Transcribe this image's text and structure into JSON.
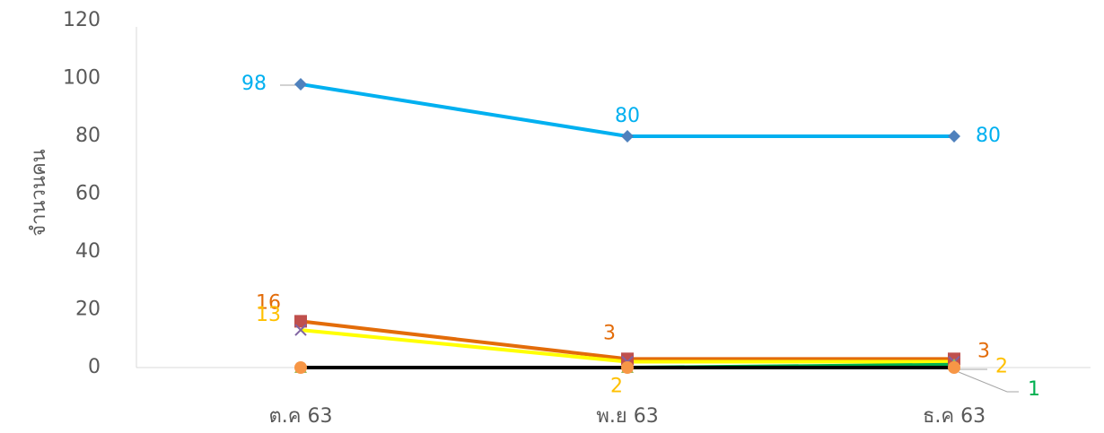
{
  "chart_data": {
    "type": "line",
    "y_axis_label": "จำนวนคน",
    "categories": [
      "ต.ค 63",
      "พ.ย 63",
      "ธ.ค 63"
    ],
    "ylim": [
      0,
      120
    ],
    "yticks": [
      0,
      20,
      40,
      60,
      80,
      100,
      120
    ],
    "series": [
      {
        "color": "#00b0f0",
        "marker": "diamond",
        "marker_color": "#4f81bd",
        "label_color": "#00b0f0",
        "values": [
          98,
          80,
          80
        ],
        "value_labels": [
          "98",
          "80",
          "80"
        ]
      },
      {
        "color": "#e36c09",
        "marker": "square",
        "marker_color": "#c0504d",
        "label_color": "#e36c09",
        "values": [
          16,
          3,
          3
        ],
        "value_labels": [
          "16",
          "3",
          "3"
        ]
      },
      {
        "color": "#ffff00",
        "marker": "x",
        "marker_color": "#8064a2",
        "label_color": "#ffc000",
        "values": [
          13,
          2,
          2
        ],
        "value_labels": [
          "13",
          "2",
          "2"
        ]
      },
      {
        "color": "#00b050",
        "marker": "triangle",
        "marker_color": "#9bbb59",
        "label_color": "#00b050",
        "values": [
          0,
          0,
          1
        ],
        "value_labels": [
          null,
          null,
          "1"
        ]
      },
      {
        "color": "#000000",
        "marker": "circle",
        "marker_color": "#f79646",
        "label_color": "#000000",
        "values": [
          0,
          0,
          0
        ],
        "value_labels": [
          null,
          null,
          null
        ]
      }
    ]
  }
}
